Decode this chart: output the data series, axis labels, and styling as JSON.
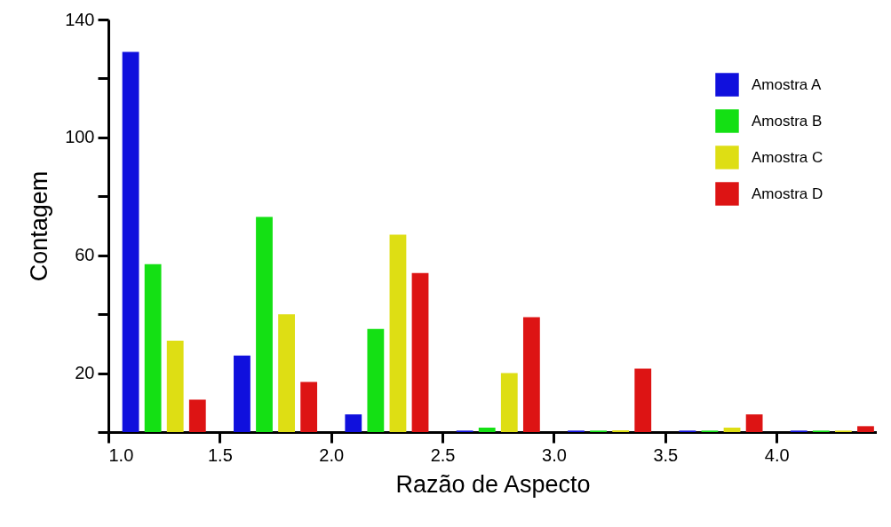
{
  "chart_data": {
    "type": "bar",
    "xlabel": "Razão de Aspecto",
    "ylabel": "Contagem",
    "xlim": [
      1.0,
      4.45
    ],
    "ylim": [
      0,
      140
    ],
    "xticks": [
      {
        "value": 1,
        "label": "1.0"
      },
      {
        "value": 1.5,
        "label": "1.5"
      },
      {
        "value": 2,
        "label": "2.0"
      },
      {
        "value": 2.5,
        "label": "2.5"
      },
      {
        "value": 3,
        "label": "3.0"
      },
      {
        "value": 3.5,
        "label": "3.5"
      },
      {
        "value": 4,
        "label": "4.0"
      }
    ],
    "yticks": [
      {
        "value": 0,
        "label": null
      },
      20,
      {
        "value": 40,
        "label": null
      },
      60,
      {
        "value": 80,
        "label": null
      },
      100,
      {
        "value": 120,
        "label": null
      },
      140
    ],
    "grid": false,
    "legend": "top right",
    "series": [
      {
        "name": "Amostra A",
        "color": "#1010dd",
        "x": [
          1.1,
          1.6,
          2.1,
          2.6,
          3.1,
          3.6,
          4.1
        ],
        "values": [
          129,
          26,
          6,
          0.5,
          0.5,
          0.5,
          0.5
        ]
      },
      {
        "name": "Amostra B",
        "color": "#14e014",
        "x": [
          1.2,
          1.7,
          2.2,
          2.7,
          3.2,
          3.7,
          4.2
        ],
        "values": [
          57,
          73,
          35,
          1.5,
          0.5,
          0.5,
          0.5
        ]
      },
      {
        "name": "Amostra C",
        "color": "#dede14",
        "x": [
          1.3,
          1.8,
          2.3,
          2.8,
          3.3,
          3.8,
          4.3
        ],
        "values": [
          31,
          40,
          67,
          20,
          0.6,
          1.5,
          0.5
        ]
      },
      {
        "name": "Amostra D",
        "color": "#dd1414",
        "x": [
          1.4,
          1.9,
          2.4,
          2.9,
          3.4,
          3.9,
          4.4
        ],
        "values": [
          11,
          17,
          54,
          39,
          21.5,
          6,
          2
        ]
      }
    ]
  }
}
